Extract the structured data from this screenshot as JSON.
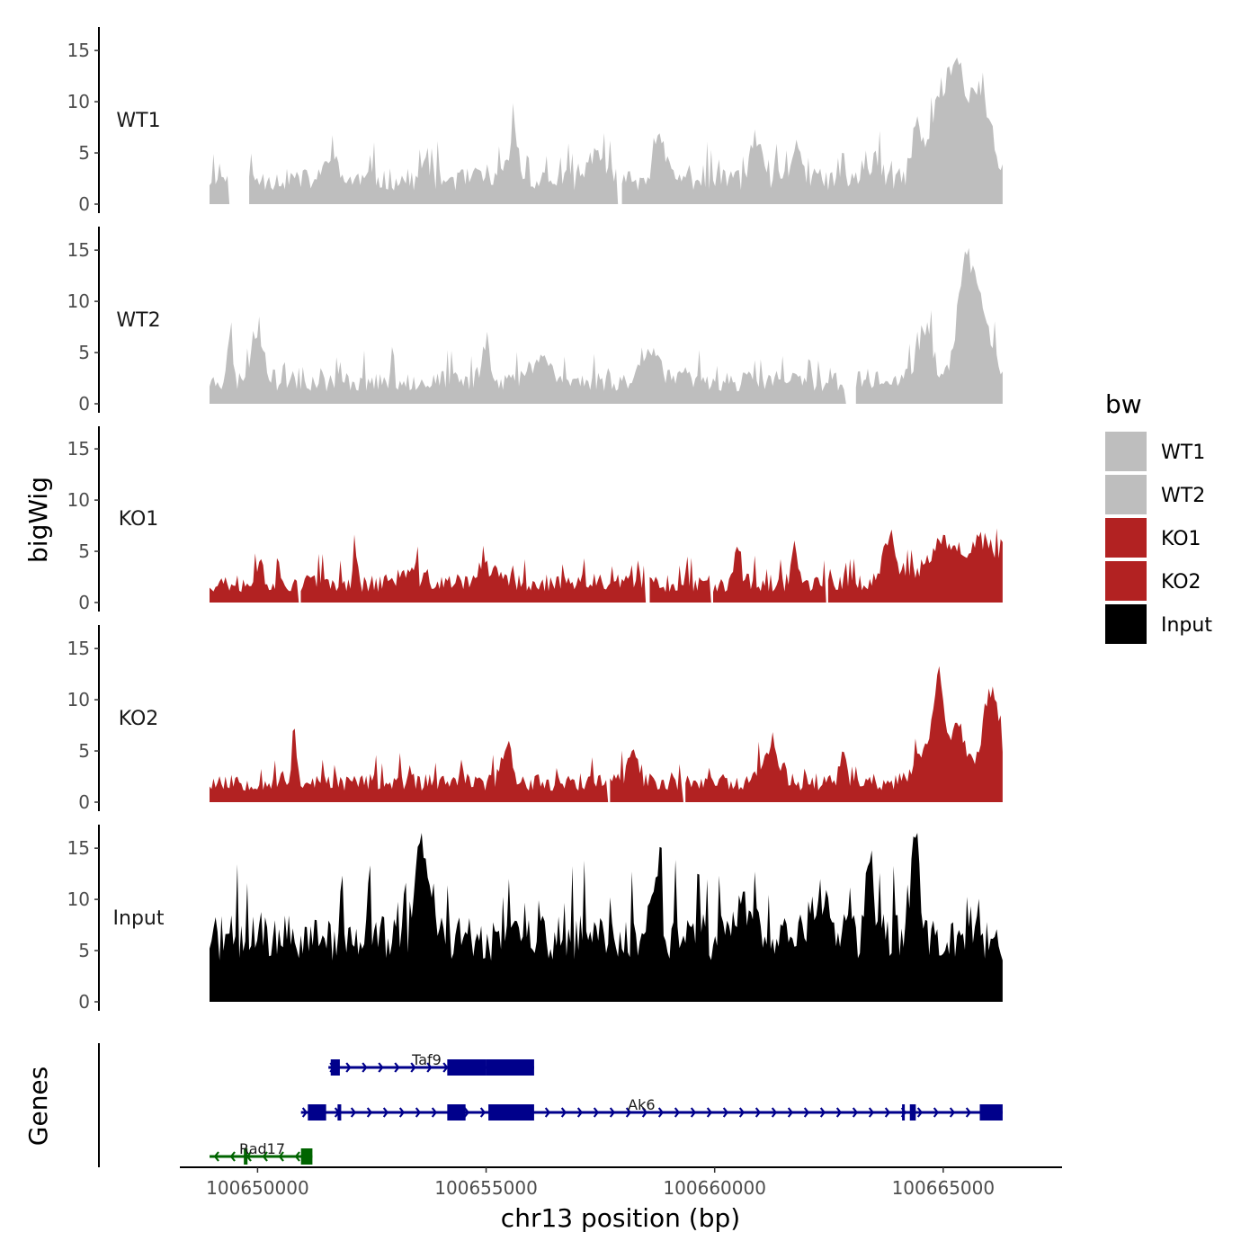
{
  "chart_data": {
    "type": "area",
    "title": "",
    "chromosome": "chr13",
    "xlabel": "chr13 position (bp)",
    "ylabel": "bigWig",
    "gene_panel_label": "Genes",
    "xlim": [
      100648300,
      100667600
    ],
    "ylim": [
      0,
      17
    ],
    "x_ticks": [
      100650000,
      100655000,
      100660000,
      100665000
    ],
    "x_tick_labels": [
      "100650000",
      "100655000",
      "100660000",
      "100665000"
    ],
    "y_ticks": [
      0,
      5,
      10,
      15
    ],
    "y_tick_labels": [
      "0",
      "5",
      "10",
      "15"
    ],
    "region": [
      100648950,
      100666300
    ],
    "legend": {
      "title": "bw",
      "position": "right",
      "items": [
        {
          "label": "WT1",
          "color": "#bebebe"
        },
        {
          "label": "WT2",
          "color": "#bebebe"
        },
        {
          "label": "KO1",
          "color": "#b22222"
        },
        {
          "label": "KO2",
          "color": "#b22222"
        },
        {
          "label": "Input",
          "color": "#000000"
        }
      ]
    },
    "series": [
      {
        "name": "WT1",
        "color": "#bebebe",
        "seed": 11,
        "base": 1.3,
        "noise": 2.2,
        "peaks": [
          [
            100649150,
            1.0,
            80
          ],
          [
            100651600,
            2.8,
            150
          ],
          [
            100653700,
            1.8,
            120
          ],
          [
            100655600,
            4.5,
            150
          ],
          [
            100657400,
            3.0,
            200
          ],
          [
            100658800,
            3.5,
            200
          ],
          [
            100660900,
            4.0,
            150
          ],
          [
            100661800,
            4.0,
            120
          ],
          [
            100663500,
            2.0,
            150
          ],
          [
            100664400,
            4.5,
            150
          ],
          [
            100664900,
            7.0,
            300
          ],
          [
            100665300,
            10.0,
            250
          ],
          [
            100665800,
            9.0,
            300
          ]
        ],
        "gaps": [
          [
            100649350,
            100649800
          ],
          [
            100657880,
            100657940
          ]
        ]
      },
      {
        "name": "WT2",
        "color": "#bebebe",
        "seed": 23,
        "base": 1.2,
        "noise": 2.0,
        "peaks": [
          [
            100649380,
            4.5,
            80
          ],
          [
            100650000,
            5.0,
            200
          ],
          [
            100655000,
            3.5,
            150
          ],
          [
            100656200,
            2.5,
            300
          ],
          [
            100658600,
            3.5,
            250
          ],
          [
            100664600,
            5.0,
            250
          ],
          [
            100665500,
            12.0,
            250
          ],
          [
            100665900,
            6.0,
            250
          ]
        ],
        "gaps": [
          [
            100662850,
            100663080
          ]
        ]
      },
      {
        "name": "KO1",
        "color": "#b22222",
        "seed": 37,
        "base": 1.0,
        "noise": 1.8,
        "peaks": [
          [
            100650050,
            2.0,
            100
          ],
          [
            100652130,
            4.2,
            60
          ],
          [
            100653300,
            1.0,
            300
          ],
          [
            100655000,
            1.5,
            300
          ],
          [
            100660500,
            4.0,
            100
          ],
          [
            100661750,
            4.0,
            100
          ],
          [
            100663800,
            4.0,
            200
          ],
          [
            100665000,
            4.0,
            500
          ],
          [
            100665900,
            4.0,
            400
          ]
        ],
        "gaps": [
          [
            100650870,
            100650940
          ],
          [
            100658480,
            100658560
          ],
          [
            100659900,
            100659960
          ],
          [
            100662400,
            100662470
          ]
        ]
      },
      {
        "name": "KO2",
        "color": "#b22222",
        "seed": 53,
        "base": 1.1,
        "noise": 1.7,
        "peaks": [
          [
            100650800,
            5.5,
            70
          ],
          [
            100655450,
            4.0,
            150
          ],
          [
            100658200,
            3.0,
            150
          ],
          [
            100661200,
            3.0,
            300
          ],
          [
            100662800,
            3.5,
            80
          ],
          [
            100664600,
            3.0,
            300
          ],
          [
            100664900,
            9.0,
            150
          ],
          [
            100665300,
            5.0,
            300
          ],
          [
            100666050,
            9.0,
            250
          ]
        ],
        "gaps": [
          [
            100657650,
            100657700
          ],
          [
            100659280,
            100659330
          ]
        ]
      },
      {
        "name": "Input",
        "color": "#000000",
        "seed": 71,
        "base": 4.0,
        "noise": 4.5,
        "peaks": [
          [
            100653600,
            9.0,
            200
          ],
          [
            100658700,
            7.0,
            120
          ],
          [
            100660700,
            3.0,
            250
          ],
          [
            100662300,
            4.0,
            250
          ],
          [
            100663400,
            6.0,
            150
          ],
          [
            100664400,
            9.0,
            150
          ]
        ],
        "gaps": []
      }
    ],
    "genes": [
      {
        "name": "Taf9",
        "color": "#00008b",
        "strand": "+",
        "row": 1,
        "start": 100651550,
        "end": 100656050,
        "exons": [
          [
            100651600,
            100651800
          ],
          [
            100654150,
            100655000
          ],
          [
            100655000,
            100656050
          ]
        ]
      },
      {
        "name": "Ak6",
        "color": "#00008b",
        "strand": "+",
        "row": 2,
        "start": 100650950,
        "end": 100666300,
        "exons": [
          [
            100651100,
            100651500
          ],
          [
            100651750,
            100651830
          ],
          [
            100654150,
            100654550
          ],
          [
            100655050,
            100656050
          ],
          [
            100664100,
            100664150
          ],
          [
            100664270,
            100664400
          ],
          [
            100665800,
            100666300
          ]
        ]
      },
      {
        "name": "Rad17",
        "color": "#006400",
        "strand": "-",
        "row": 3,
        "start": 100648950,
        "end": 100651200,
        "exons": [
          [
            100649700,
            100649780
          ],
          [
            100650950,
            100651200
          ]
        ]
      }
    ]
  }
}
